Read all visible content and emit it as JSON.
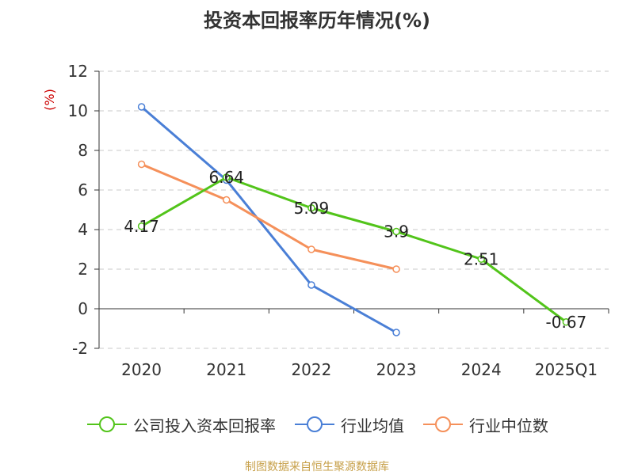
{
  "title": "投资本回报率历年情况(%)",
  "source": "制图数据来自恒生聚源数据库",
  "chart_data": {
    "type": "line",
    "title": "投资本回报率历年情况(%)",
    "ylabel": "(%)",
    "categories": [
      "2020",
      "2021",
      "2022",
      "2023",
      "2024",
      "2025Q1"
    ],
    "ylim": [
      -2,
      12
    ],
    "yticks": [
      -2,
      0,
      2,
      4,
      6,
      8,
      10,
      12
    ],
    "grid": true,
    "legend_position": "bottom",
    "series": [
      {
        "name": "公司投入资本回报率",
        "color": "#52c41a",
        "labeled": true,
        "values": [
          4.17,
          6.64,
          5.09,
          3.9,
          2.51,
          -0.67
        ],
        "labels": [
          "4.17",
          "6.64",
          "5.09",
          "3.9",
          "2.51",
          "-0.67"
        ]
      },
      {
        "name": "行业均值",
        "color": "#4a7fd6",
        "labeled": false,
        "values": [
          10.2,
          6.5,
          1.2,
          -1.2,
          null,
          null
        ]
      },
      {
        "name": "行业中位数",
        "color": "#f5905a",
        "labeled": false,
        "values": [
          7.3,
          5.5,
          3.0,
          2.0,
          null,
          null
        ]
      }
    ]
  }
}
